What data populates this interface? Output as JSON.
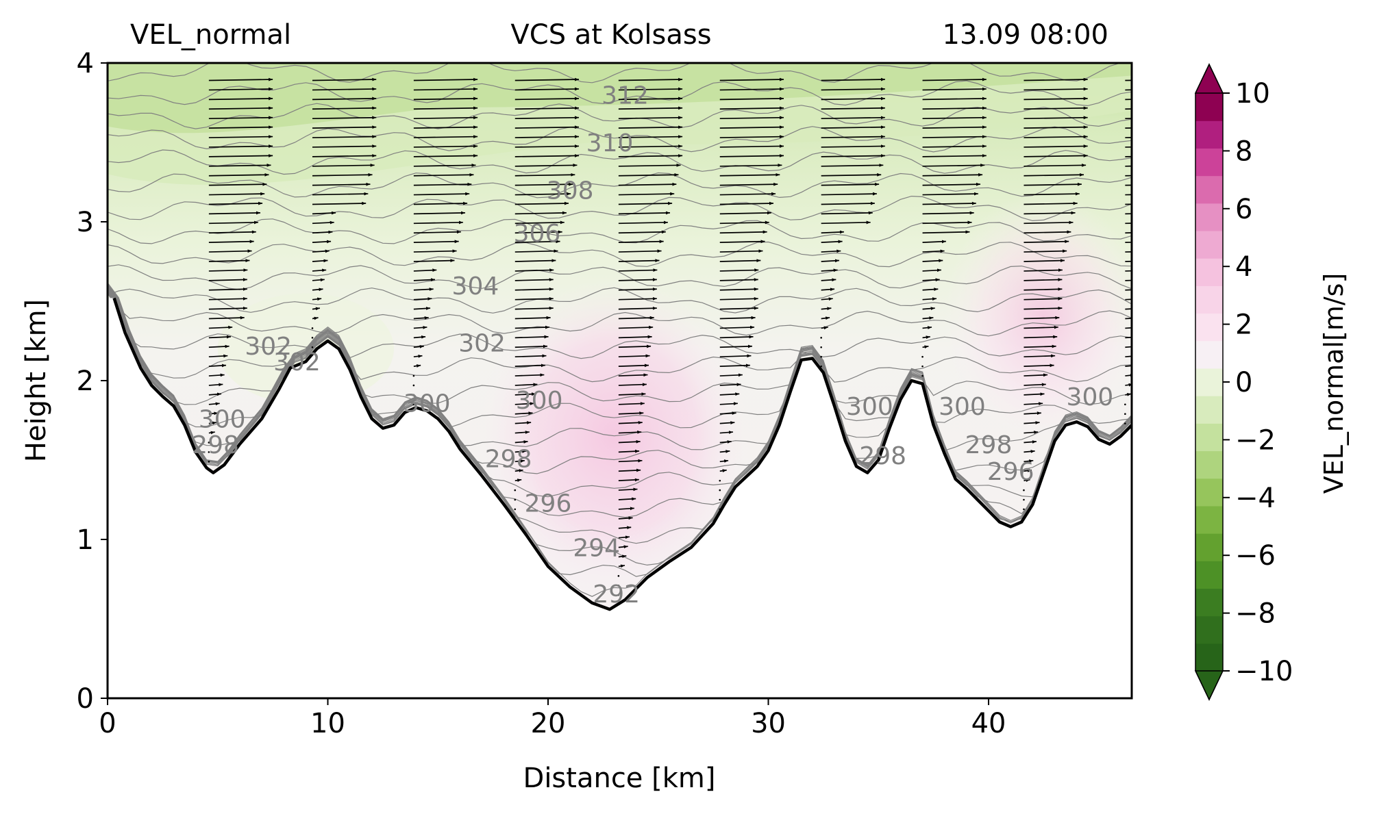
{
  "chart_data": {
    "type": "heatmap",
    "title_left": "VEL_normal",
    "title_center": "VCS at Kolsass",
    "title_right": "13.09 08:00",
    "xlabel": "Distance [km]",
    "ylabel": "Height [km]",
    "xlim": [
      0,
      46.5
    ],
    "ylim": [
      0,
      4
    ],
    "xticks": [
      0,
      10,
      20,
      30,
      40
    ],
    "yticks": [
      0,
      1,
      2,
      3,
      4
    ],
    "colorbar": {
      "label": "VEL_normal[m/s]",
      "min": -10,
      "max": 10,
      "step": 1,
      "extend": "both",
      "ticks": [
        10,
        8,
        6,
        4,
        2,
        0,
        -2,
        -4,
        -6,
        -8,
        -10
      ],
      "tick_labels": [
        "10",
        "8",
        "6",
        "4",
        "2",
        "0",
        "−2",
        "−4",
        "−6",
        "−8",
        "−10"
      ],
      "colors": [
        "#276419",
        "#306f1d",
        "#3b7d21",
        "#4d9126",
        "#63a12f",
        "#7cb442",
        "#96c55c",
        "#aed47e",
        "#c4e19e",
        "#d8ebbd",
        "#eaf3da",
        "#f7f0f4",
        "#fae2ef",
        "#f8d4e8",
        "#f5c2df",
        "#eeaad2",
        "#e690c3",
        "#db6bae",
        "#cc4299",
        "#b01f7f",
        "#8e0152"
      ],
      "over_color": "#8e0152",
      "under_color": "#276419"
    },
    "terrain": {
      "x": [
        0.3,
        0.8,
        1.5,
        2.0,
        2.5,
        3.0,
        3.5,
        4.0,
        4.5,
        4.8,
        5.3,
        6.0,
        7.0,
        7.8,
        8.3,
        9.0,
        9.5,
        10.0,
        10.5,
        11.0,
        11.5,
        12.0,
        12.5,
        13.0,
        13.5,
        14.0,
        14.5,
        15.0,
        15.5,
        16.0,
        17.0,
        18.0,
        19.0,
        20.0,
        21.0,
        22.0,
        22.8,
        23.5,
        24.5,
        25.5,
        26.5,
        27.5,
        28.0,
        28.5,
        29.5,
        30.0,
        30.5,
        31.0,
        31.5,
        32.0,
        32.5,
        33.0,
        33.5,
        34.0,
        34.5,
        35.0,
        35.5,
        36.0,
        36.5,
        37.0,
        37.5,
        38.0,
        38.5,
        39.0,
        39.5,
        40.0,
        40.5,
        41.0,
        41.5,
        42.0,
        42.5,
        43.0,
        43.5,
        44.0,
        44.5,
        45.0,
        45.5,
        46.0,
        46.5
      ],
      "y": [
        2.52,
        2.3,
        2.08,
        1.97,
        1.9,
        1.84,
        1.72,
        1.55,
        1.45,
        1.42,
        1.47,
        1.6,
        1.76,
        1.95,
        2.08,
        2.12,
        2.2,
        2.25,
        2.2,
        2.07,
        1.9,
        1.76,
        1.7,
        1.72,
        1.8,
        1.83,
        1.81,
        1.76,
        1.68,
        1.57,
        1.4,
        1.22,
        1.03,
        0.83,
        0.7,
        0.6,
        0.56,
        0.62,
        0.76,
        0.86,
        0.95,
        1.1,
        1.22,
        1.33,
        1.46,
        1.56,
        1.72,
        1.93,
        2.13,
        2.14,
        2.05,
        1.84,
        1.62,
        1.46,
        1.42,
        1.5,
        1.7,
        1.88,
        2.0,
        1.98,
        1.72,
        1.54,
        1.38,
        1.32,
        1.25,
        1.18,
        1.11,
        1.08,
        1.11,
        1.22,
        1.42,
        1.62,
        1.72,
        1.74,
        1.71,
        1.63,
        1.6,
        1.65,
        1.72
      ]
    },
    "isentrope_labels": [
      {
        "text": "312",
        "x": 23.5,
        "y": 3.8
      },
      {
        "text": "310",
        "x": 22.8,
        "y": 3.5
      },
      {
        "text": "308",
        "x": 21.0,
        "y": 3.2
      },
      {
        "text": "306",
        "x": 19.5,
        "y": 2.93
      },
      {
        "text": "304",
        "x": 16.7,
        "y": 2.6
      },
      {
        "text": "302",
        "x": 7.3,
        "y": 2.22
      },
      {
        "text": "302",
        "x": 8.6,
        "y": 2.12
      },
      {
        "text": "302",
        "x": 17.0,
        "y": 2.24
      },
      {
        "text": "300",
        "x": 5.2,
        "y": 1.76
      },
      {
        "text": "298",
        "x": 4.9,
        "y": 1.6
      },
      {
        "text": "300",
        "x": 14.5,
        "y": 1.86
      },
      {
        "text": "300",
        "x": 19.6,
        "y": 1.88
      },
      {
        "text": "298",
        "x": 18.2,
        "y": 1.51
      },
      {
        "text": "296",
        "x": 20.0,
        "y": 1.23
      },
      {
        "text": "294",
        "x": 22.2,
        "y": 0.95
      },
      {
        "text": "292",
        "x": 23.1,
        "y": 0.66
      },
      {
        "text": "300",
        "x": 34.6,
        "y": 1.84
      },
      {
        "text": "298",
        "x": 35.2,
        "y": 1.53
      },
      {
        "text": "300",
        "x": 38.8,
        "y": 1.84
      },
      {
        "text": "298",
        "x": 40.0,
        "y": 1.6
      },
      {
        "text": "296",
        "x": 41.0,
        "y": 1.43
      },
      {
        "text": "300",
        "x": 44.6,
        "y": 1.9
      }
    ],
    "vector_columns_x": [
      4.6,
      9.3,
      13.9,
      18.5,
      23.2,
      27.8,
      32.4,
      37.0,
      41.6,
      46.2
    ]
  }
}
